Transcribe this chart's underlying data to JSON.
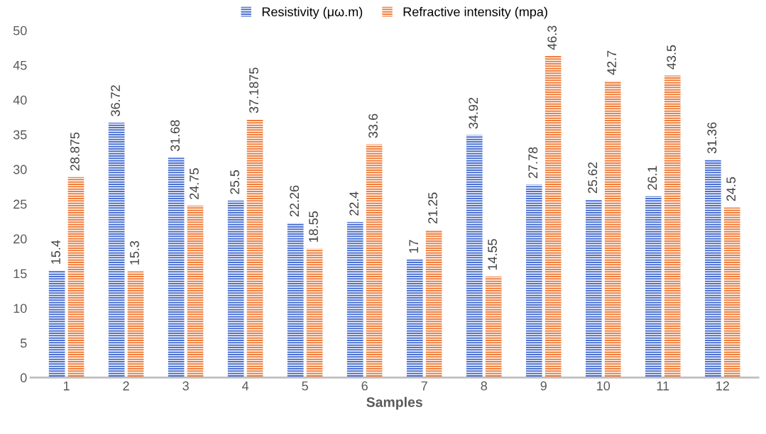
{
  "chart_data": {
    "type": "bar",
    "xlabel": "Samples",
    "categories": [
      "1",
      "2",
      "3",
      "4",
      "5",
      "6",
      "7",
      "8",
      "9",
      "10",
      "11",
      "12"
    ],
    "series": [
      {
        "name": "Resistivity (μω.m)",
        "color": "#4a6fd0",
        "values": [
          15.4,
          36.72,
          31.68,
          25.5,
          22.26,
          22.4,
          17,
          34.92,
          27.78,
          25.62,
          26.1,
          31.36
        ]
      },
      {
        "name": "Refractive intensity (mpa)",
        "color": "#ef7d3c",
        "values": [
          28.875,
          15.3,
          24.75,
          37.1875,
          18.55,
          33.6,
          21.25,
          14.55,
          46.3,
          42.7,
          43.5,
          24.5
        ]
      }
    ],
    "ylim": [
      0,
      50
    ],
    "yticks": [
      0,
      5,
      10,
      15,
      20,
      25,
      30,
      35,
      40,
      45,
      50
    ],
    "data_labels": true,
    "grid": false,
    "legend": "top"
  }
}
